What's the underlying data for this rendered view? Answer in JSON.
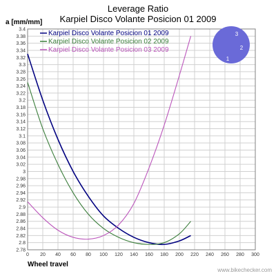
{
  "chart_data": {
    "type": "line",
    "title": "Leverage Ratio",
    "subtitle": "Karpiel Disco Volante Posicion 01 2009",
    "xlabel": "Wheel travel",
    "ylabel": "a [mm/mm]",
    "xlim": [
      0,
      300
    ],
    "ylim": [
      2.78,
      3.4
    ],
    "x_ticks": [
      0,
      20,
      40,
      60,
      80,
      100,
      120,
      140,
      160,
      180,
      200,
      220,
      240,
      260,
      280,
      300
    ],
    "y_ticks": [
      2.78,
      2.8,
      2.82,
      2.84,
      2.86,
      2.88,
      2.9,
      2.92,
      2.94,
      2.96,
      2.98,
      3,
      3.02,
      3.04,
      3.06,
      3.08,
      3.1,
      3.12,
      3.14,
      3.16,
      3.18,
      3.2,
      3.22,
      3.24,
      3.26,
      3.28,
      3.3,
      3.32,
      3.34,
      3.36,
      3.38,
      3.4
    ],
    "grid": true,
    "legend_position": "top-left",
    "series": [
      {
        "name": "Karpiel Disco Volante Posicion 01 2009",
        "color": "#000080",
        "x": [
          0,
          20,
          40,
          60,
          80,
          100,
          120,
          140,
          160,
          180,
          200,
          215
        ],
        "y": [
          3.33,
          3.2,
          3.09,
          3.0,
          2.93,
          2.875,
          2.84,
          2.815,
          2.8,
          2.795,
          2.805,
          2.82
        ]
      },
      {
        "name": "Karpiel Disco Volante Posicion 02 2009",
        "color": "#3a7d3a",
        "x": [
          0,
          20,
          40,
          60,
          80,
          100,
          120,
          140,
          160,
          180,
          200,
          215
        ],
        "y": [
          3.25,
          3.12,
          3.02,
          2.94,
          2.88,
          2.84,
          2.815,
          2.8,
          2.795,
          2.8,
          2.825,
          2.86
        ]
      },
      {
        "name": "Karpiel Disco Volante Posicion 03 2009",
        "color": "#bb55bb",
        "x": [
          0,
          20,
          40,
          60,
          80,
          100,
          120,
          140,
          160,
          180,
          200,
          215
        ],
        "y": [
          2.915,
          2.87,
          2.835,
          2.815,
          2.81,
          2.82,
          2.85,
          2.91,
          3.01,
          3.13,
          3.27,
          3.38
        ]
      }
    ]
  },
  "position_badge": {
    "color": "#6a6ad8",
    "labels": [
      "3",
      "2",
      "1"
    ]
  },
  "watermark": "www.bikechecker.com"
}
